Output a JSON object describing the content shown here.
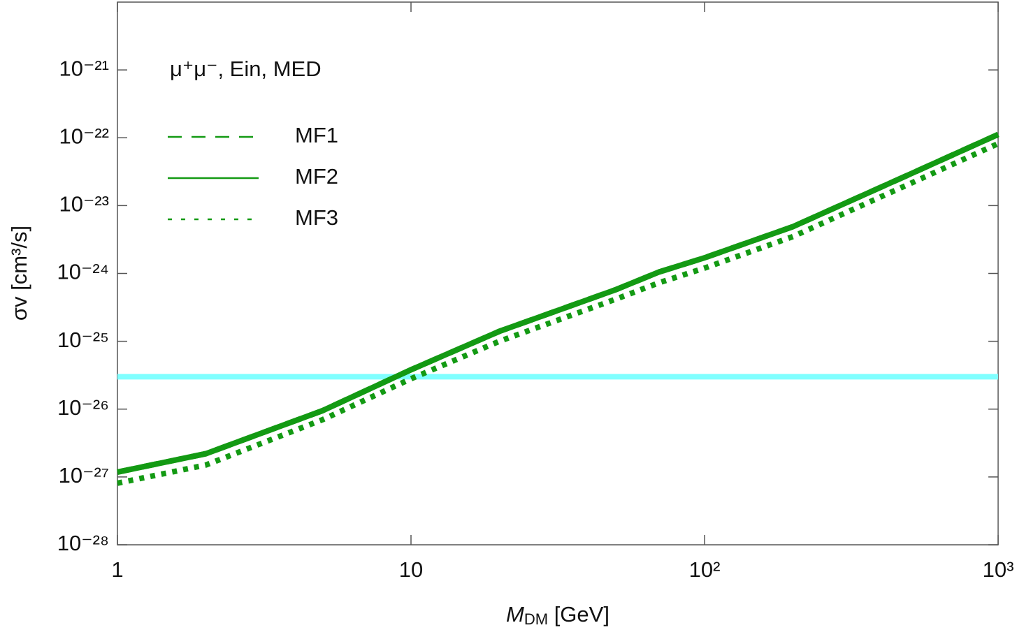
{
  "chart_data": {
    "type": "line",
    "annotation": "μ⁺μ⁻, Ein, MED",
    "xlabel": [
      "M",
      "DM",
      " [GeV]"
    ],
    "ylabel": "σv [cm³/s]",
    "x": [
      1,
      2,
      5,
      10,
      20,
      50,
      70,
      100,
      200,
      500,
      1000
    ],
    "series": [
      {
        "name": "MF1",
        "color": "#139a13",
        "dash": "dashed",
        "values": [
          1.18e-27,
          2.2e-27,
          9.5e-27,
          3.8e-26,
          1.4e-25,
          5.8e-25,
          1.05e-24,
          1.7e-24,
          4.9e-24,
          2.9e-23,
          1.12e-22
        ]
      },
      {
        "name": "MF2",
        "color": "#139a13",
        "dash": "solid",
        "values": [
          1.18e-27,
          2.2e-27,
          9.5e-27,
          3.8e-26,
          1.4e-25,
          5.8e-25,
          1.05e-24,
          1.7e-24,
          4.9e-24,
          2.9e-23,
          1.12e-22
        ]
      },
      {
        "name": "MF3",
        "color": "#139a13",
        "dash": "dotted",
        "values": [
          8.1e-28,
          1.5e-27,
          7e-27,
          2.8e-26,
          1e-25,
          4.2e-25,
          7.3e-25,
          1.2e-24,
          3.5e-24,
          2.1e-23,
          8.2e-23
        ]
      }
    ],
    "reference_line": {
      "value": 3e-26,
      "color": "#80ffff"
    },
    "log_x": true,
    "log_y": true,
    "xlim": [
      1,
      1000
    ],
    "xticks": [
      1,
      10,
      {
        "value": 100,
        "label": "10²"
      },
      {
        "value": 1000,
        "label": "10³"
      }
    ],
    "ylim": [
      1e-28,
      1e-20
    ],
    "yticks": [
      {
        "value": 1e-28,
        "label": "10⁻²⁸"
      },
      {
        "value": 1e-27,
        "label": "10⁻²⁷"
      },
      {
        "value": 1e-26,
        "label": "10⁻²⁶"
      },
      {
        "value": 1e-25,
        "label": "10⁻²⁵"
      },
      {
        "value": 1e-24,
        "label": "10⁻²⁴"
      },
      {
        "value": 1e-23,
        "label": "10⁻²³"
      },
      {
        "value": 1e-22,
        "label": "10⁻²²"
      },
      {
        "value": 1e-21,
        "label": "10⁻²¹"
      }
    ],
    "legend": "upper-left"
  }
}
